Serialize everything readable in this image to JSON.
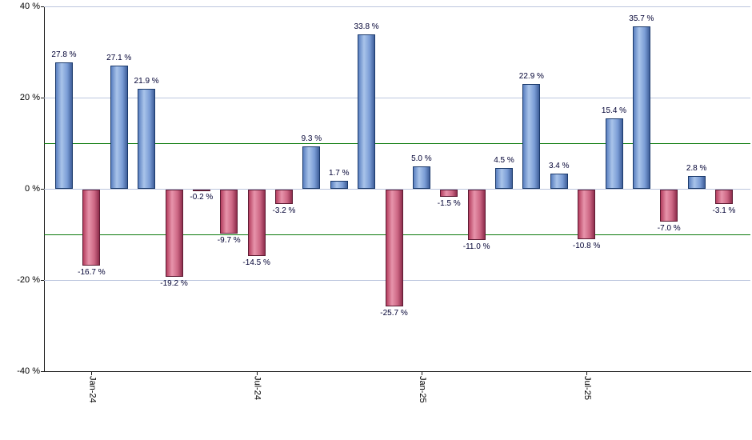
{
  "chart_data": {
    "type": "bar",
    "title": "",
    "xlabel": "",
    "ylabel": "",
    "ylim": [
      -40,
      40
    ],
    "grid": "horizontal",
    "legend_position": "none",
    "y_ticks": [
      {
        "value": 40,
        "label": "40 %"
      },
      {
        "value": 20,
        "label": "20 %"
      },
      {
        "value": 0,
        "label": "0 %"
      },
      {
        "value": -20,
        "label": "-20 %"
      },
      {
        "value": -40,
        "label": "-40 %"
      }
    ],
    "x_ticks": [
      {
        "index": 1,
        "label": "Jan-24"
      },
      {
        "index": 7,
        "label": "Jul-24"
      },
      {
        "index": 13,
        "label": "Jan-25"
      },
      {
        "index": 19,
        "label": "Jul-25"
      }
    ],
    "gridline_values": [
      40,
      20,
      0,
      -20
    ],
    "reference_line_values": [
      10,
      -10
    ],
    "bars": [
      {
        "value": 27.8,
        "label": "27.8 %"
      },
      {
        "value": -16.7,
        "label": "-16.7 %"
      },
      {
        "value": 27.1,
        "label": "27.1 %"
      },
      {
        "value": 21.9,
        "label": "21.9 %"
      },
      {
        "value": -19.2,
        "label": "-19.2 %"
      },
      {
        "value": -0.2,
        "label": "-0.2 %"
      },
      {
        "value": -9.7,
        "label": "-9.7 %"
      },
      {
        "value": -14.5,
        "label": "-14.5 %"
      },
      {
        "value": -3.2,
        "label": "-3.2 %"
      },
      {
        "value": 9.3,
        "label": "9.3 %"
      },
      {
        "value": 1.7,
        "label": "1.7 %"
      },
      {
        "value": 33.8,
        "label": "33.8 %"
      },
      {
        "value": -25.7,
        "label": "-25.7 %"
      },
      {
        "value": 5.0,
        "label": "5.0 %"
      },
      {
        "value": -1.5,
        "label": "-1.5 %"
      },
      {
        "value": -11.0,
        "label": "-11.0 %"
      },
      {
        "value": 4.5,
        "label": "4.5 %"
      },
      {
        "value": 22.9,
        "label": "22.9 %"
      },
      {
        "value": 3.4,
        "label": "3.4 %"
      },
      {
        "value": -10.8,
        "label": "-10.8 %"
      },
      {
        "value": 15.4,
        "label": "15.4 %"
      },
      {
        "value": 35.7,
        "label": "35.7 %"
      },
      {
        "value": -7.0,
        "label": "-7.0 %"
      },
      {
        "value": 2.8,
        "label": "2.8 %"
      },
      {
        "value": -3.1,
        "label": "-3.1 %"
      }
    ],
    "colors": {
      "positive_fill": "#7b9dd6",
      "positive_border": "#1b3a6b",
      "negative_fill": "#cc6784",
      "negative_border": "#5d1b33",
      "gridline": "#bcc6de",
      "reference_line": "#0c7a0c",
      "axis": "#1a1a1a",
      "label_text": "#000033",
      "background": "#ffffff"
    }
  }
}
